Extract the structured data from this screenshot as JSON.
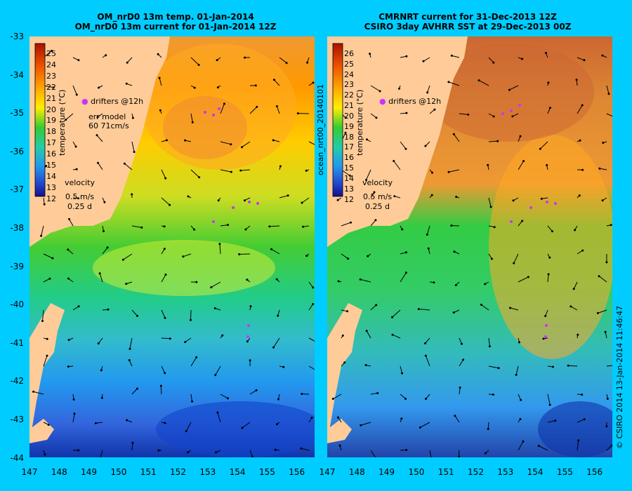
{
  "left": {
    "title1": "OM_nrD0 13m temp. 01-Jan-2014",
    "title2": "OM_nrD0 13m current for 01-Jan-2014 12Z",
    "colorbar_ticks": [
      "25",
      "24",
      "23",
      "22",
      "21",
      "20",
      "19",
      "18",
      "17",
      "16",
      "15",
      "14",
      "13",
      "12"
    ],
    "colorbar_label": "temperature (°C)",
    "drifters": "drifters @12h",
    "err1": "err model",
    "err2": "60 71cm/s",
    "velocity": "velocity",
    "vel1": "0.5 m/s",
    "vel2": "0.25 d"
  },
  "right": {
    "title1": "CMRNRT current for 31-Dec-2013 12Z",
    "title2": "CSIRO 3day AVHRR SST at 29-Dec-2013 00Z",
    "colorbar_ticks": [
      "26",
      "25",
      "24",
      "23",
      "22",
      "21",
      "20",
      "19",
      "18",
      "17",
      "16",
      "15",
      "14",
      "13",
      "12"
    ],
    "colorbar_label": "temperature (°C)",
    "drifters": "drifters @12h",
    "velocity": "velocity",
    "vel1": "0.5 m/s",
    "vel2": "0.25 d",
    "side_label": "ocean_nrt00_20140101"
  },
  "credit": "© CSIRO 2014   13-Jan-2014 11:46:47",
  "y_ticks": [
    "-33",
    "-34",
    "-35",
    "-36",
    "-37",
    "-38",
    "-39",
    "-40",
    "-41",
    "-42",
    "-43",
    "-44"
  ],
  "x_ticks": [
    "147",
    "148",
    "149",
    "150",
    "151",
    "152",
    "153",
    "154",
    "155",
    "156"
  ],
  "colors": {
    "background": "#00ccff",
    "land": "#ffcc99",
    "drifter": "#cc33ff"
  }
}
